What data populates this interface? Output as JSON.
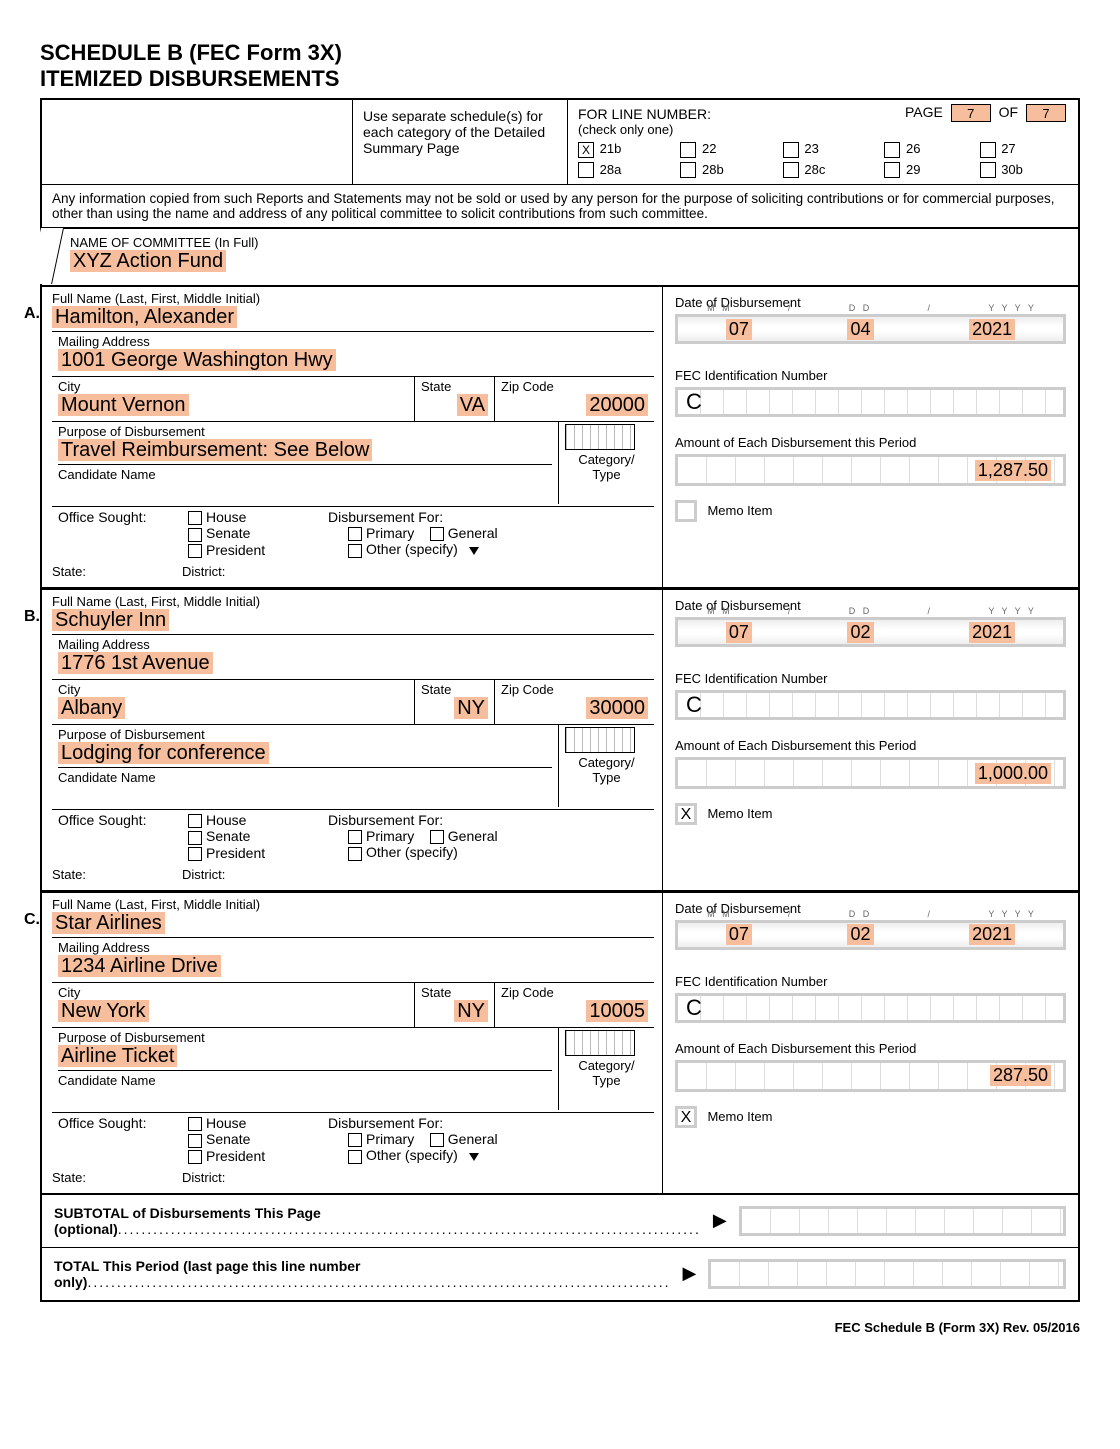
{
  "header": {
    "title1": "SCHEDULE B   (FEC Form 3X)",
    "title2": "ITEMIZED DISBURSEMENTS",
    "instructions": "Use separate schedule(s) for each category of the Detailed Summary Page",
    "line_label": "FOR LINE NUMBER:",
    "check_label": "(check only one)",
    "page_label": "PAGE",
    "of_label": "OF",
    "page": "7",
    "pages": "7",
    "lines": [
      {
        "num": "21b",
        "checked": "X"
      },
      {
        "num": "22",
        "checked": ""
      },
      {
        "num": "23",
        "checked": ""
      },
      {
        "num": "26",
        "checked": ""
      },
      {
        "num": "27",
        "checked": ""
      },
      {
        "num": "28a",
        "checked": ""
      },
      {
        "num": "28b",
        "checked": ""
      },
      {
        "num": "28c",
        "checked": ""
      },
      {
        "num": "29",
        "checked": ""
      },
      {
        "num": "30b",
        "checked": ""
      }
    ]
  },
  "notice": "Any information copied from such Reports and Statements may not be sold or used by any person for the purpose of soliciting contributions or for commercial purposes, other than using the name and address of any political committee to solicit contributions from such committee.",
  "committee": {
    "label": "NAME OF COMMITTEE (In Full)",
    "value": "XYZ Action Fund"
  },
  "field_labels": {
    "fullname": "Full Name (Last, First, Middle Initial)",
    "mail": "Mailing Address",
    "city": "City",
    "state": "State",
    "zip": "Zip Code",
    "purpose": "Purpose of Disbursement",
    "candidate": "Candidate Name",
    "cat": "Category/\nType",
    "office": "Office Sought:",
    "house": "House",
    "senate": "Senate",
    "president": "President",
    "disb": "Disbursement For:",
    "primary": "Primary",
    "general": "General",
    "other": "Other (specify)",
    "statef": "State:",
    "district": "District:",
    "date": "Date of Disbursement",
    "fec": "FEC Identification Number",
    "amount": "Amount of Each Disbursement this Period",
    "memo": "Memo Item"
  },
  "entries": [
    {
      "marker": "A.",
      "name": "Hamilton, Alexander",
      "addr": "1001 George Washington Hwy",
      "city": "Mount Vernon",
      "state": "VA",
      "zip": "20000",
      "purpose": "Travel Reimbursement: See Below",
      "mm": "07",
      "dd": "04",
      "yy": "2021",
      "fec": "C",
      "amount": "1,287.50",
      "memo": "",
      "othertri": true
    },
    {
      "marker": "B.",
      "name": "Schuyler Inn",
      "addr": "1776 1st Avenue",
      "city": "Albany",
      "state": "NY",
      "zip": "30000",
      "purpose": "Lodging for conference",
      "mm": "07",
      "dd": "02",
      "yy": "2021",
      "fec": "C",
      "amount": "1,000.00",
      "memo": "X",
      "othertri": false
    },
    {
      "marker": "C.",
      "name": "Star Airlines",
      "addr": "1234 Airline Drive",
      "city": "New York",
      "state": "NY",
      "zip": "10005",
      "purpose": "Airline Ticket",
      "mm": "07",
      "dd": "02",
      "yy": "2021",
      "fec": "C",
      "amount": "287.50",
      "memo": "X",
      "othertri": true
    }
  ],
  "totals": {
    "subtotal": "SUBTOTAL of Disbursements This Page (optional)",
    "total": "TOTAL This Period (last page this line number only)"
  },
  "footer": "FEC Schedule B (Form 3X) Rev. 05/2016"
}
